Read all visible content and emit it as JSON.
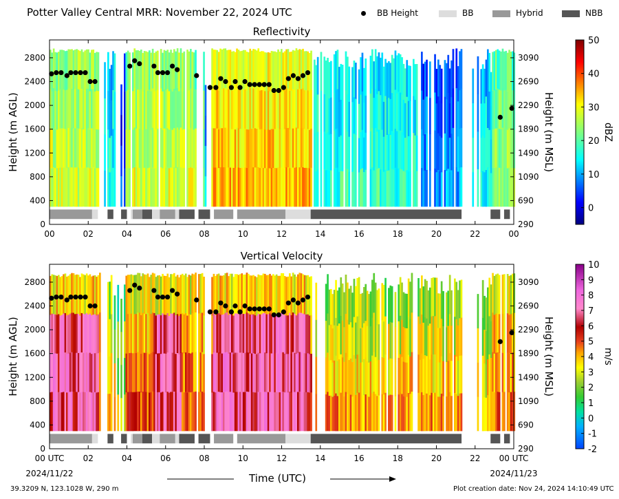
{
  "figure": {
    "title": "Potter Valley Central MRR:  November 22, 2024 UTC",
    "legend": [
      {
        "label": "BB Height",
        "kind": "marker",
        "color": "#000000"
      },
      {
        "label": "BB",
        "kind": "swatch",
        "color": "#dddddd"
      },
      {
        "label": "Hybrid",
        "kind": "swatch",
        "color": "#999999"
      },
      {
        "label": "NBB",
        "kind": "swatch",
        "color": "#555555"
      }
    ],
    "footer_left": "39.3209 N, 123.1028 W, 290 m",
    "footer_right": "Plot creation date: Nov 24, 2024 14:10:49 UTC",
    "xlabel": "Time (UTC)"
  },
  "chart_data": [
    {
      "type": "heatmap",
      "title": "Reflectivity",
      "xlabel": "Time (UTC)",
      "ylabel": "Height (m AGL)",
      "ylabel_right": "Height (m MSL)",
      "xlim": [
        0,
        24
      ],
      "ylim": [
        0,
        3100
      ],
      "x_ticks": [
        "00",
        "02",
        "04",
        "06",
        "08",
        "10",
        "12",
        "14",
        "16",
        "18",
        "20",
        "22",
        "00"
      ],
      "y_ticks": [
        0,
        400,
        800,
        1200,
        1600,
        2000,
        2400,
        2800
      ],
      "y_ticks_right": [
        "290",
        "690",
        "1090",
        "1490",
        "1890",
        "2290",
        "2690",
        "3090"
      ],
      "colorbar": {
        "label": "dBZ",
        "min": -5,
        "max": 50,
        "ticks": [
          0,
          10,
          20,
          30,
          40,
          50
        ],
        "colormap": "jet"
      },
      "bb_height": [
        [
          0.1,
          2530
        ],
        [
          0.35,
          2550
        ],
        [
          0.6,
          2550
        ],
        [
          0.9,
          2500
        ],
        [
          1.1,
          2550
        ],
        [
          1.35,
          2550
        ],
        [
          1.6,
          2550
        ],
        [
          1.85,
          2550
        ],
        [
          2.1,
          2400
        ],
        [
          2.35,
          2400
        ],
        [
          4.15,
          2660
        ],
        [
          4.4,
          2750
        ],
        [
          4.65,
          2700
        ],
        [
          5.4,
          2660
        ],
        [
          5.6,
          2550
        ],
        [
          5.85,
          2550
        ],
        [
          6.1,
          2550
        ],
        [
          6.35,
          2660
        ],
        [
          6.6,
          2600
        ],
        [
          7.6,
          2500
        ],
        [
          8.3,
          2300
        ],
        [
          8.6,
          2300
        ],
        [
          8.85,
          2450
        ],
        [
          9.1,
          2400
        ],
        [
          9.4,
          2300
        ],
        [
          9.6,
          2400
        ],
        [
          9.85,
          2300
        ],
        [
          10.1,
          2400
        ],
        [
          10.35,
          2350
        ],
        [
          10.6,
          2350
        ],
        [
          10.85,
          2350
        ],
        [
          11.1,
          2350
        ],
        [
          11.35,
          2350
        ],
        [
          11.6,
          2250
        ],
        [
          11.85,
          2250
        ],
        [
          12.1,
          2300
        ],
        [
          12.35,
          2450
        ],
        [
          12.6,
          2500
        ],
        [
          12.85,
          2450
        ],
        [
          13.1,
          2500
        ],
        [
          13.35,
          2550
        ],
        [
          23.3,
          1800
        ],
        [
          23.9,
          1950
        ]
      ],
      "bb_type": [
        {
          "start": 0.0,
          "end": 2.2,
          "type": "Hybrid"
        },
        {
          "start": 2.2,
          "end": 2.5,
          "type": "BB"
        },
        {
          "start": 3.0,
          "end": 3.3,
          "type": "NBB"
        },
        {
          "start": 3.7,
          "end": 4.0,
          "type": "NBB"
        },
        {
          "start": 4.2,
          "end": 4.3,
          "type": "BB"
        },
        {
          "start": 4.3,
          "end": 4.8,
          "type": "Hybrid"
        },
        {
          "start": 4.8,
          "end": 5.3,
          "type": "NBB"
        },
        {
          "start": 5.3,
          "end": 5.7,
          "type": "BB"
        },
        {
          "start": 5.7,
          "end": 6.5,
          "type": "Hybrid"
        },
        {
          "start": 6.5,
          "end": 6.7,
          "type": "BB"
        },
        {
          "start": 6.7,
          "end": 7.5,
          "type": "NBB"
        },
        {
          "start": 7.7,
          "end": 8.3,
          "type": "NBB"
        },
        {
          "start": 8.5,
          "end": 9.5,
          "type": "Hybrid"
        },
        {
          "start": 9.7,
          "end": 12.2,
          "type": "Hybrid"
        },
        {
          "start": 12.2,
          "end": 13.5,
          "type": "BB"
        },
        {
          "start": 13.5,
          "end": 21.3,
          "type": "NBB"
        },
        {
          "start": 22.8,
          "end": 23.3,
          "type": "NBB"
        },
        {
          "start": 23.5,
          "end": 23.8,
          "type": "NBB"
        }
      ]
    },
    {
      "type": "heatmap",
      "title": "Vertical Velocity",
      "xlabel": "Time (UTC)",
      "ylabel": "Height (m AGL)",
      "ylabel_right": "Height (m MSL)",
      "xlim": [
        0,
        24
      ],
      "ylim": [
        0,
        3100
      ],
      "x_ticks": [
        "00 UTC",
        "02",
        "04",
        "06",
        "08",
        "10",
        "12",
        "14",
        "16",
        "18",
        "20",
        "22",
        "00 UTC"
      ],
      "x_dates": [
        "2024/11/22",
        "2024/11/23"
      ],
      "y_ticks": [
        0,
        400,
        800,
        1200,
        1600,
        2000,
        2400,
        2800
      ],
      "y_ticks_right": [
        "290",
        "690",
        "1090",
        "1490",
        "1890",
        "2290",
        "2690",
        "3090"
      ],
      "colorbar": {
        "label": "m/s",
        "min": -2,
        "max": 10,
        "ticks": [
          -2,
          -1,
          0,
          1,
          2,
          3,
          4,
          5,
          6,
          7,
          8,
          9,
          10
        ],
        "colormap": "velocity"
      },
      "bb_height": [
        [
          0.1,
          2530
        ],
        [
          0.35,
          2550
        ],
        [
          0.6,
          2550
        ],
        [
          0.9,
          2500
        ],
        [
          1.1,
          2550
        ],
        [
          1.35,
          2550
        ],
        [
          1.6,
          2550
        ],
        [
          1.85,
          2550
        ],
        [
          2.1,
          2400
        ],
        [
          2.35,
          2400
        ],
        [
          4.15,
          2660
        ],
        [
          4.4,
          2750
        ],
        [
          4.65,
          2700
        ],
        [
          5.4,
          2660
        ],
        [
          5.6,
          2550
        ],
        [
          5.85,
          2550
        ],
        [
          6.1,
          2550
        ],
        [
          6.35,
          2660
        ],
        [
          6.6,
          2600
        ],
        [
          7.6,
          2500
        ],
        [
          8.3,
          2300
        ],
        [
          8.6,
          2300
        ],
        [
          8.85,
          2450
        ],
        [
          9.1,
          2400
        ],
        [
          9.4,
          2300
        ],
        [
          9.6,
          2400
        ],
        [
          9.85,
          2300
        ],
        [
          10.1,
          2400
        ],
        [
          10.35,
          2350
        ],
        [
          10.6,
          2350
        ],
        [
          10.85,
          2350
        ],
        [
          11.1,
          2350
        ],
        [
          11.35,
          2350
        ],
        [
          11.6,
          2250
        ],
        [
          11.85,
          2250
        ],
        [
          12.1,
          2300
        ],
        [
          12.35,
          2450
        ],
        [
          12.6,
          2500
        ],
        [
          12.85,
          2450
        ],
        [
          13.1,
          2500
        ],
        [
          13.35,
          2550
        ],
        [
          23.3,
          1800
        ],
        [
          23.9,
          1950
        ]
      ],
      "bb_type": [
        {
          "start": 0.0,
          "end": 2.2,
          "type": "Hybrid"
        },
        {
          "start": 2.2,
          "end": 2.5,
          "type": "BB"
        },
        {
          "start": 3.0,
          "end": 3.3,
          "type": "NBB"
        },
        {
          "start": 3.7,
          "end": 4.0,
          "type": "NBB"
        },
        {
          "start": 4.2,
          "end": 4.3,
          "type": "BB"
        },
        {
          "start": 4.3,
          "end": 4.8,
          "type": "Hybrid"
        },
        {
          "start": 4.8,
          "end": 5.3,
          "type": "NBB"
        },
        {
          "start": 5.3,
          "end": 5.7,
          "type": "BB"
        },
        {
          "start": 5.7,
          "end": 6.5,
          "type": "Hybrid"
        },
        {
          "start": 6.5,
          "end": 6.7,
          "type": "BB"
        },
        {
          "start": 6.7,
          "end": 7.5,
          "type": "NBB"
        },
        {
          "start": 7.7,
          "end": 8.3,
          "type": "NBB"
        },
        {
          "start": 8.5,
          "end": 9.5,
          "type": "Hybrid"
        },
        {
          "start": 9.7,
          "end": 12.2,
          "type": "Hybrid"
        },
        {
          "start": 12.2,
          "end": 13.5,
          "type": "BB"
        },
        {
          "start": 13.5,
          "end": 21.3,
          "type": "NBB"
        },
        {
          "start": 22.8,
          "end": 23.3,
          "type": "NBB"
        },
        {
          "start": 23.5,
          "end": 23.8,
          "type": "NBB"
        }
      ]
    }
  ]
}
